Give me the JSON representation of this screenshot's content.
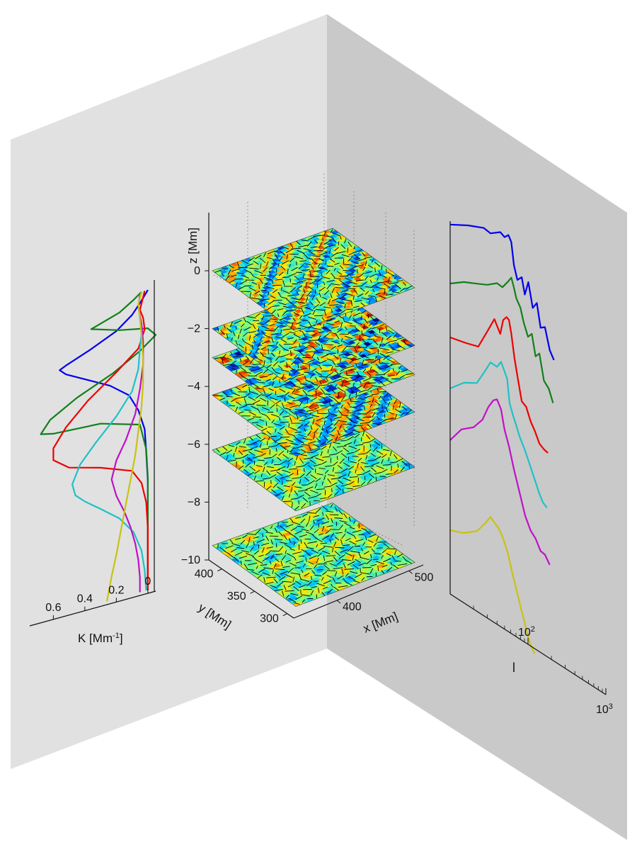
{
  "colors": {
    "wall_left": "#e1e1e1",
    "wall_right": "#c9c9c9",
    "axis": "#111111",
    "profile_colors": [
      "#0000ee",
      "#11801a",
      "#ee0000",
      "#1fc1c6",
      "#c010c8",
      "#c8c214"
    ]
  },
  "chart_data": [
    {
      "type": "line",
      "panel": "left-profiles",
      "xlabel": "K [Mm",
      "xlabel_sup": "-1",
      "xlabel_tail": "]",
      "x_ticks": [
        "0.6",
        "0.4",
        "0.2",
        "0"
      ],
      "x_tick_values": [
        0.6,
        0.4,
        0.2,
        0
      ],
      "xlim": [
        0.75,
        -0.05
      ],
      "ylim": [
        -10.5,
        0
      ],
      "grid": false,
      "series": [
        {
          "color": "#0000ee",
          "z": [
            -0.1,
            -0.4,
            -0.8,
            -1.2,
            -1.6,
            -1.9,
            -2.0,
            -2.2,
            -2.6,
            -3.0,
            -3.5,
            -4.1,
            -4.8,
            -5.6,
            -6.6,
            -7.6,
            -8.6,
            -9.6,
            -10.3
          ],
          "k": [
            0.0,
            0.04,
            0.1,
            0.2,
            0.37,
            0.52,
            0.56,
            0.52,
            0.38,
            0.24,
            0.12,
            0.06,
            0.02,
            0.01,
            0.0,
            0.0,
            0.0,
            0.0,
            0.0
          ]
        },
        {
          "color": "#11801a",
          "z": [
            -0.1,
            -0.3,
            -0.6,
            -0.9,
            -1.2,
            -1.4,
            -1.7,
            -2.1,
            -2.6,
            -3.1,
            -3.6,
            -4.0,
            -4.1,
            -4.2,
            -4.6,
            -5.5,
            -6.5,
            -7.5,
            -8.5,
            -9.6,
            -10.3
          ],
          "k": [
            0.04,
            0.09,
            0.18,
            0.36,
            0.18,
            0.0,
            -0.05,
            0.05,
            0.22,
            0.45,
            0.62,
            0.68,
            0.6,
            0.3,
            0.05,
            0.01,
            0.0,
            0.0,
            0.0,
            0.0,
            0.0
          ]
        },
        {
          "color": "#ee0000",
          "z": [
            -0.1,
            -0.3,
            -0.7,
            -1.0,
            -1.4,
            -2.0,
            -2.6,
            -3.3,
            -4.0,
            -4.6,
            -5.0,
            -5.4,
            -5.7,
            -6.1,
            -6.6,
            -7.3,
            -8.2,
            -9.2,
            -10.3
          ],
          "k": [
            0.02,
            0.03,
            0.05,
            0.03,
            0.02,
            0.06,
            0.2,
            0.38,
            0.52,
            0.6,
            0.6,
            0.5,
            0.3,
            0.1,
            0.04,
            0.01,
            0.0,
            0.0,
            0.0
          ]
        },
        {
          "color": "#1fc1c6",
          "z": [
            -0.1,
            -0.5,
            -1.0,
            -1.5,
            -2.0,
            -2.7,
            -3.4,
            -4.1,
            -4.8,
            -5.4,
            -6.0,
            -6.4,
            -6.7,
            -7.1,
            -7.6,
            -8.2,
            -8.9,
            -9.6,
            -10.3
          ],
          "k": [
            0.04,
            0.06,
            0.05,
            0.04,
            0.05,
            0.06,
            0.1,
            0.2,
            0.33,
            0.43,
            0.48,
            0.46,
            0.4,
            0.3,
            0.18,
            0.09,
            0.04,
            0.02,
            0.01
          ]
        },
        {
          "color": "#c010c8",
          "z": [
            -0.2,
            -0.6,
            -1.2,
            -1.8,
            -2.6,
            -3.4,
            -4.2,
            -5.0,
            -5.6,
            -6.2,
            -6.8,
            -7.4,
            -8.0,
            -8.6,
            -9.2,
            -9.8,
            -10.3
          ],
          "k": [
            0.05,
            0.06,
            0.04,
            0.03,
            0.03,
            0.05,
            0.08,
            0.14,
            0.2,
            0.23,
            0.2,
            0.15,
            0.11,
            0.08,
            0.06,
            0.05,
            0.05
          ]
        },
        {
          "color": "#c8c214",
          "z": [
            -0.1,
            -0.5,
            -1.0,
            -1.6,
            -2.4,
            -3.2,
            -4.0,
            -4.8,
            -5.6,
            -6.4,
            -7.2,
            -8.0,
            -8.8,
            -9.5,
            -10.3
          ],
          "k": [
            0.04,
            0.06,
            0.05,
            0.04,
            0.03,
            0.03,
            0.04,
            0.06,
            0.08,
            0.11,
            0.14,
            0.17,
            0.2,
            0.23,
            0.26
          ]
        }
      ]
    },
    {
      "type": "heatmap",
      "panel": "center-slices",
      "zlabel": "z [Mm]",
      "xlabel": "x [Mm]",
      "ylabel": "y [Mm]",
      "z_ticks": [
        "0",
        "−2",
        "−4",
        "−6",
        "−8",
        "−10"
      ],
      "z_tick_values": [
        0,
        -2,
        -4,
        -6,
        -8,
        -10
      ],
      "x_ticks": [
        "400",
        "500"
      ],
      "x_tick_values": [
        400,
        500
      ],
      "y_ticks": [
        "400",
        "350",
        "300"
      ],
      "y_tick_values": [
        400,
        350,
        300
      ],
      "xlim": [
        340,
        520
      ],
      "ylim": [
        290,
        420
      ],
      "zlim": [
        -10.5,
        0.6
      ],
      "slice_depths": [
        0,
        -2,
        -3,
        -4.3,
        -6.2,
        -9.5
      ],
      "colormap": [
        "#00008f",
        "#0050ff",
        "#00d2ff",
        "#7dff7a",
        "#ffe600",
        "#ff5a00",
        "#b00000"
      ]
    },
    {
      "type": "line",
      "panel": "right-spectra",
      "xlabel": "l",
      "x_ticks": [
        "10",
        "10"
      ],
      "x_tick_exp": [
        "2",
        "3"
      ],
      "x_tick_values": [
        100,
        1000
      ],
      "x_scale": "log",
      "xlim": [
        10,
        1000
      ],
      "grid": false,
      "series": [
        {
          "color": "#0000ee",
          "l": [
            10,
            17,
            27,
            33,
            44,
            50,
            56,
            61,
            66,
            73,
            83,
            91,
            101,
            115,
            130,
            145,
            165,
            190,
            215
          ],
          "y": [
            0.42,
            0.55,
            0.62,
            0.55,
            0.66,
            0.58,
            0.66,
            0.52,
            0.0,
            -0.32,
            -0.22,
            -0.6,
            -0.28,
            -0.85,
            -0.7,
            -1.25,
            -1.2,
            -1.7,
            -1.9
          ]
        },
        {
          "color": "#11801a",
          "l": [
            10,
            15,
            22,
            30,
            40,
            47,
            55,
            61,
            65,
            71,
            80,
            88,
            100,
            112,
            125,
            140,
            160,
            185,
            210
          ],
          "y": [
            0.2,
            0.35,
            0.42,
            0.48,
            0.6,
            0.55,
            0.72,
            0.85,
            0.68,
            0.4,
            0.22,
            -0.1,
            -0.4,
            -0.3,
            -0.8,
            -0.7,
            -1.3,
            -1.45,
            -1.75
          ]
        },
        {
          "color": "#ee0000",
          "l": [
            10,
            16,
            23,
            30,
            37,
            44,
            48,
            53,
            57,
            61,
            67,
            74,
            83,
            95,
            108,
            123,
            140,
            160,
            180
          ],
          "y": [
            0.1,
            0.1,
            0.12,
            0.55,
            0.9,
            0.6,
            0.95,
            1.05,
            1.0,
            0.7,
            0.15,
            -0.3,
            -0.8,
            -0.9,
            -1.2,
            -1.4,
            -1.65,
            -1.75,
            -1.8
          ]
        },
        {
          "color": "#1fc1c6",
          "l": [
            10,
            15,
            22,
            28,
            33,
            40,
            45,
            50,
            54,
            58,
            64,
            70,
            78,
            90,
            104,
            120,
            138,
            155,
            175
          ],
          "y": [
            -0.1,
            0.15,
            0.25,
            0.6,
            0.85,
            0.8,
            0.95,
            0.75,
            0.6,
            0.05,
            -0.2,
            -0.4,
            -0.65,
            -0.9,
            -1.2,
            -1.5,
            -1.8,
            -2.0,
            -2.1
          ]
        },
        {
          "color": "#c010c8",
          "l": [
            10,
            14,
            20,
            26,
            31,
            36,
            40,
            45,
            50,
            57,
            66,
            78,
            92,
            108,
            125,
            145,
            165,
            190
          ],
          "y": [
            -0.15,
            0.2,
            0.35,
            0.6,
            0.95,
            1.15,
            1.2,
            1.0,
            0.55,
            0.2,
            -0.3,
            -0.8,
            -1.3,
            -1.6,
            -1.75,
            -2.0,
            -2.05,
            -2.25
          ]
        },
        {
          "color": "#c8c214",
          "l": [
            10,
            15,
            22,
            28,
            33,
            37,
            42,
            48,
            55,
            62,
            70,
            80,
            92,
            106,
            122
          ],
          "y": [
            -0.1,
            -0.05,
            0.1,
            0.35,
            0.55,
            0.45,
            0.35,
            0.15,
            -0.15,
            -0.55,
            -0.9,
            -1.3,
            -1.7,
            -2.1,
            -2.3
          ]
        }
      ]
    }
  ]
}
